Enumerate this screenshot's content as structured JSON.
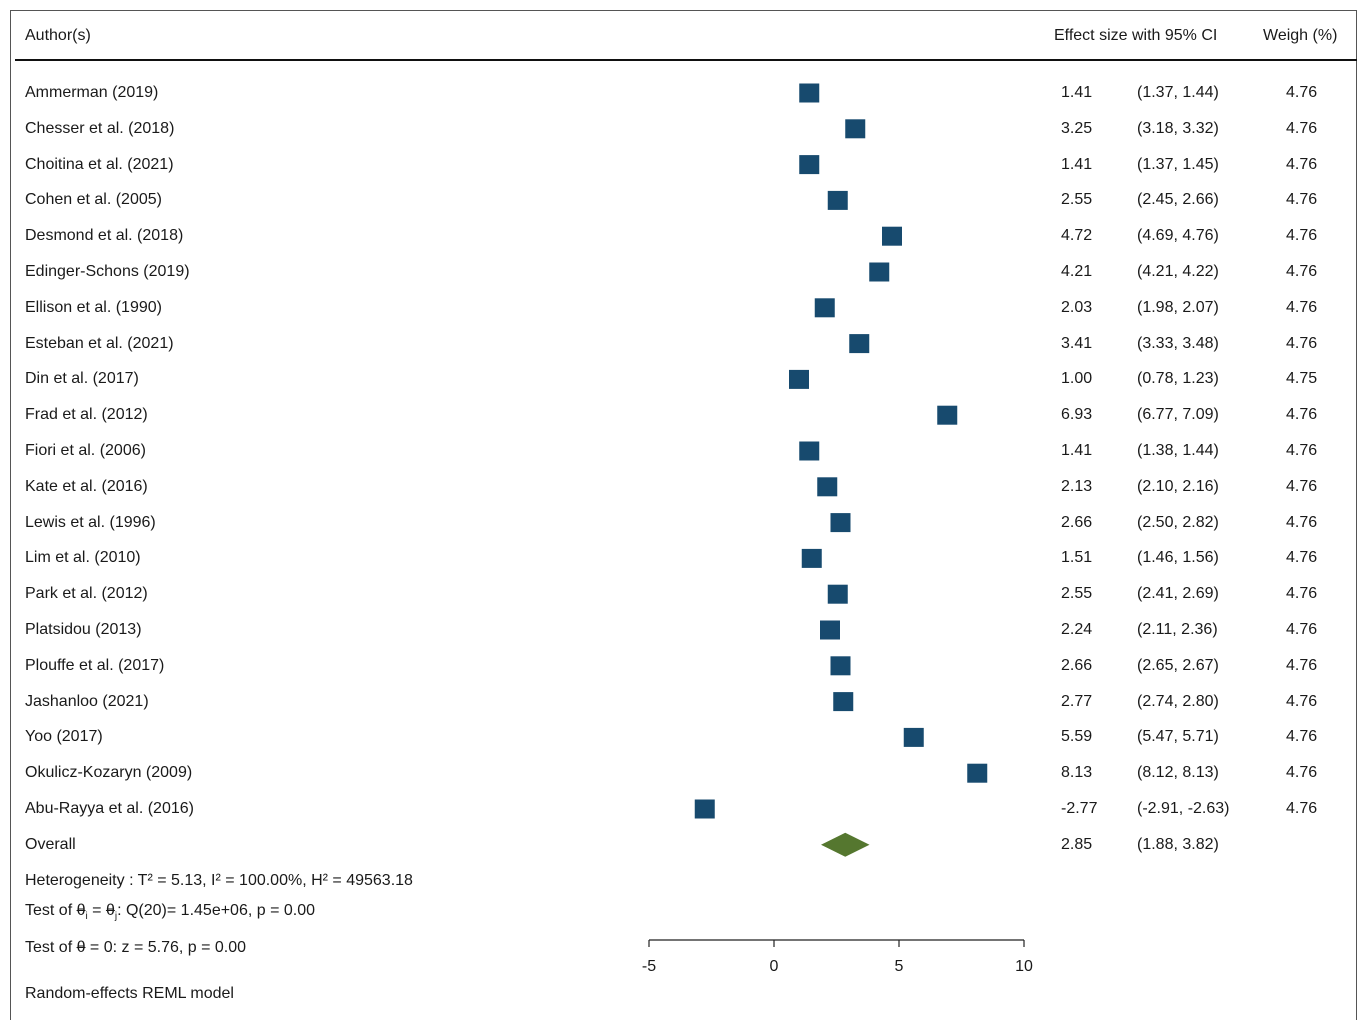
{
  "header": {
    "author_label": "Author(s)",
    "effect_label": "Effect size with 95% CI",
    "weight_label": "Weigh (%)"
  },
  "chart_data": {
    "type": "forest",
    "xlim": [
      -5,
      10
    ],
    "x_ticks": [
      -5,
      0,
      5,
      10
    ],
    "marker_color": "#174a6e",
    "overall_color": "#55772f",
    "studies": [
      {
        "author": "Ammerman (2019)",
        "es": 1.41,
        "ci_text": "(1.37, 1.44)",
        "es_text": "1.41",
        "weight": "4.76"
      },
      {
        "author": "Chesser et al. (2018)",
        "es": 3.25,
        "ci_text": "(3.18, 3.32)",
        "es_text": "3.25",
        "weight": "4.76"
      },
      {
        "author": "Choitina et al. (2021)",
        "es": 1.41,
        "ci_text": "(1.37, 1.45)",
        "es_text": "1.41",
        "weight": "4.76"
      },
      {
        "author": "Cohen et al. (2005)",
        "es": 2.55,
        "ci_text": "(2.45, 2.66)",
        "es_text": "2.55",
        "weight": "4.76"
      },
      {
        "author": "Desmond et al. (2018)",
        "es": 4.72,
        "ci_text": "(4.69, 4.76)",
        "es_text": "4.72",
        "weight": "4.76"
      },
      {
        "author": "Edinger-Schons (2019)",
        "es": 4.21,
        "ci_text": "(4.21, 4.22)",
        "es_text": "4.21",
        "weight": "4.76"
      },
      {
        "author": "Ellison et al. (1990)",
        "es": 2.03,
        "ci_text": "(1.98, 2.07)",
        "es_text": "2.03",
        "weight": "4.76"
      },
      {
        "author": "Esteban et al. (2021)",
        "es": 3.41,
        "ci_text": "(3.33, 3.48)",
        "es_text": "3.41",
        "weight": "4.76"
      },
      {
        "author": "Din et al. (2017)",
        "es": 1.0,
        "ci_text": "(0.78, 1.23)",
        "es_text": "1.00",
        "weight": "4.75"
      },
      {
        "author": "Frad et al. (2012)",
        "es": 6.93,
        "ci_text": "(6.77, 7.09)",
        "es_text": "6.93",
        "weight": "4.76"
      },
      {
        "author": "Fiori et al. (2006)",
        "es": 1.41,
        "ci_text": "(1.38, 1.44)",
        "es_text": "1.41",
        "weight": "4.76"
      },
      {
        "author": "Kate et al. (2016)",
        "es": 2.13,
        "ci_text": "(2.10, 2.16)",
        "es_text": "2.13",
        "weight": "4.76"
      },
      {
        "author": "Lewis et al. (1996)",
        "es": 2.66,
        "ci_text": "(2.50, 2.82)",
        "es_text": "2.66",
        "weight": "4.76"
      },
      {
        "author": "Lim et al. (2010)",
        "es": 1.51,
        "ci_text": "(1.46, 1.56)",
        "es_text": "1.51",
        "weight": "4.76"
      },
      {
        "author": "Park et al. (2012)",
        "es": 2.55,
        "ci_text": "(2.41, 2.69)",
        "es_text": "2.55",
        "weight": "4.76"
      },
      {
        "author": "Platsidou (2013)",
        "es": 2.24,
        "ci_text": "(2.11, 2.36)",
        "es_text": "2.24",
        "weight": "4.76"
      },
      {
        "author": "Plouffe et al. (2017)",
        "es": 2.66,
        "ci_text": "(2.65, 2.67)",
        "es_text": "2.66",
        "weight": "4.76"
      },
      {
        "author": "Jashanloo (2021)",
        "es": 2.77,
        "ci_text": "(2.74, 2.80)",
        "es_text": "2.77",
        "weight": "4.76"
      },
      {
        "author": "Yoo (2017)",
        "es": 5.59,
        "ci_text": "(5.47, 5.71)",
        "es_text": "5.59",
        "weight": "4.76"
      },
      {
        "author": "Okulicz-Kozaryn (2009)",
        "es": 8.13,
        "ci_text": "(8.12, 8.13)",
        "es_text": "8.13",
        "weight": "4.76"
      },
      {
        "author": "Abu-Rayya et al. (2016)",
        "es": -2.77,
        "ci_text": "(-2.91, -2.63)",
        "es_text": "-2.77",
        "weight": "4.76"
      }
    ],
    "overall": {
      "label": "Overall",
      "es": 2.85,
      "lo": 1.88,
      "hi": 3.82,
      "es_text": "2.85",
      "ci_text": "(1.88, 3.82)"
    }
  },
  "footer": {
    "heterogeneity": "Heterogeneity : T² = 5.13, I² = 100.00%, H² = 49563.18",
    "test_homog_prefix": "Test of ",
    "test_homog_theta_i": "θ",
    "test_homog_sub_i": "i",
    "test_homog_eq": " = ",
    "test_homog_theta_j": "θ",
    "test_homog_sub_j": "j",
    "test_homog_rest": ": Q(20)= 1.45e+06, p = 0.00",
    "test_zero_prefix": "Test of ",
    "test_zero_theta": "θ",
    "test_zero_rest": " = 0: z = 5.76, p = 0.00",
    "model": "Random-effects REML model"
  }
}
